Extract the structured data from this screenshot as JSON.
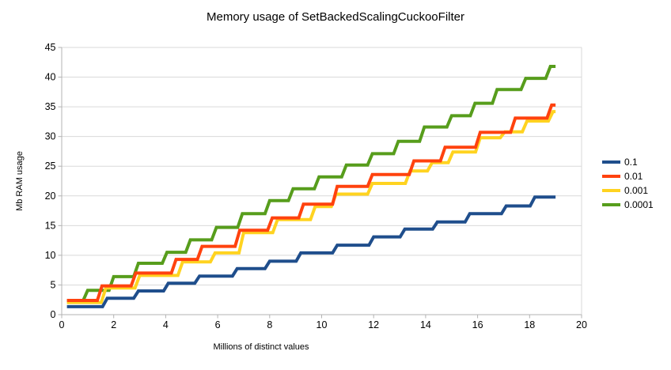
{
  "title": "Memory usage of SetBackedScalingCuckooFilter",
  "x_axis": {
    "label": "Millions of distinct values",
    "min": 0,
    "max": 20,
    "ticks": [
      0,
      2,
      4,
      6,
      8,
      10,
      12,
      14,
      16,
      18,
      20
    ]
  },
  "y_axis": {
    "label": "Mb RAM usage",
    "min": 0,
    "max": 45,
    "ticks": [
      0,
      5,
      10,
      15,
      20,
      25,
      30,
      35,
      40,
      45
    ]
  },
  "legend": {
    "position": "right",
    "items": [
      "0.1",
      "0.01",
      "0.001",
      "0.0001"
    ]
  },
  "colors": {
    "background": "#ffffff",
    "grid": "#d9d9d9",
    "axis": "#b3b3b3",
    "text": "#000000",
    "series_blue": "#1f4e8c",
    "series_red": "#ff420e",
    "series_yellow": "#ffd320",
    "series_green": "#579d1c"
  },
  "chart_data": {
    "type": "line",
    "style": "step",
    "title": "Memory usage of SetBackedScalingCuckooFilter",
    "xlabel": "Millions of distinct values",
    "ylabel": "Mb RAM usage",
    "xlim": [
      0,
      20
    ],
    "ylim": [
      0,
      45
    ],
    "grid": "horizontal-only",
    "legend_position": "right",
    "x_start": 0.2,
    "x_end": 19.0,
    "riser_width": 0.18,
    "series": [
      {
        "name": "0.1",
        "color": "#1f4e8c",
        "steps": [
          [
            0.2,
            1.35
          ],
          [
            1.75,
            2.75
          ],
          [
            2.95,
            4.0
          ],
          [
            4.1,
            5.3
          ],
          [
            5.3,
            6.5
          ],
          [
            6.75,
            7.75
          ],
          [
            8.0,
            9.0
          ],
          [
            9.2,
            10.4
          ],
          [
            10.6,
            11.7
          ],
          [
            12.0,
            13.1
          ],
          [
            13.2,
            14.4
          ],
          [
            14.45,
            15.6
          ],
          [
            15.7,
            17.0
          ],
          [
            17.1,
            18.3
          ],
          [
            18.2,
            19.8
          ]
        ]
      },
      {
        "name": "0.01",
        "color": "#ff420e",
        "steps": [
          [
            0.2,
            2.4
          ],
          [
            1.55,
            4.85
          ],
          [
            2.85,
            7.0
          ],
          [
            4.4,
            9.3
          ],
          [
            5.4,
            11.5
          ],
          [
            6.85,
            14.2
          ],
          [
            8.1,
            16.3
          ],
          [
            9.3,
            18.6
          ],
          [
            10.6,
            21.6
          ],
          [
            11.95,
            23.6
          ],
          [
            13.55,
            25.9
          ],
          [
            14.75,
            28.2
          ],
          [
            16.1,
            30.7
          ],
          [
            17.45,
            33.1
          ],
          [
            18.85,
            35.3
          ]
        ]
      },
      {
        "name": "0.001",
        "color": "#ffd320",
        "steps": [
          [
            0.2,
            2.05
          ],
          [
            1.7,
            4.5
          ],
          [
            3.0,
            6.6
          ],
          [
            4.65,
            8.9
          ],
          [
            5.9,
            10.4
          ],
          [
            7.0,
            13.8
          ],
          [
            8.3,
            16.0
          ],
          [
            9.75,
            18.2
          ],
          [
            10.55,
            20.3
          ],
          [
            11.95,
            22.1
          ],
          [
            13.4,
            24.2
          ],
          [
            14.25,
            25.6
          ],
          [
            15.05,
            27.4
          ],
          [
            16.1,
            29.8
          ],
          [
            17.05,
            30.8
          ],
          [
            17.9,
            32.6
          ],
          [
            18.9,
            34.2
          ]
        ]
      },
      {
        "name": "0.0001",
        "color": "#579d1c",
        "steps": [
          [
            0.2,
            2.3
          ],
          [
            1.0,
            4.1
          ],
          [
            2.0,
            6.4
          ],
          [
            2.95,
            8.65
          ],
          [
            4.05,
            10.5
          ],
          [
            4.95,
            12.6
          ],
          [
            5.95,
            14.7
          ],
          [
            6.95,
            17.0
          ],
          [
            8.0,
            19.2
          ],
          [
            8.9,
            21.2
          ],
          [
            9.9,
            23.2
          ],
          [
            10.95,
            25.2
          ],
          [
            11.95,
            27.1
          ],
          [
            12.95,
            29.2
          ],
          [
            13.95,
            31.6
          ],
          [
            15.0,
            33.5
          ],
          [
            15.9,
            35.6
          ],
          [
            16.75,
            37.9
          ],
          [
            17.85,
            39.8
          ],
          [
            18.8,
            41.8
          ]
        ]
      }
    ],
    "draw_order": [
      "0.0001",
      "0.001",
      "0.01",
      "0.1"
    ]
  }
}
